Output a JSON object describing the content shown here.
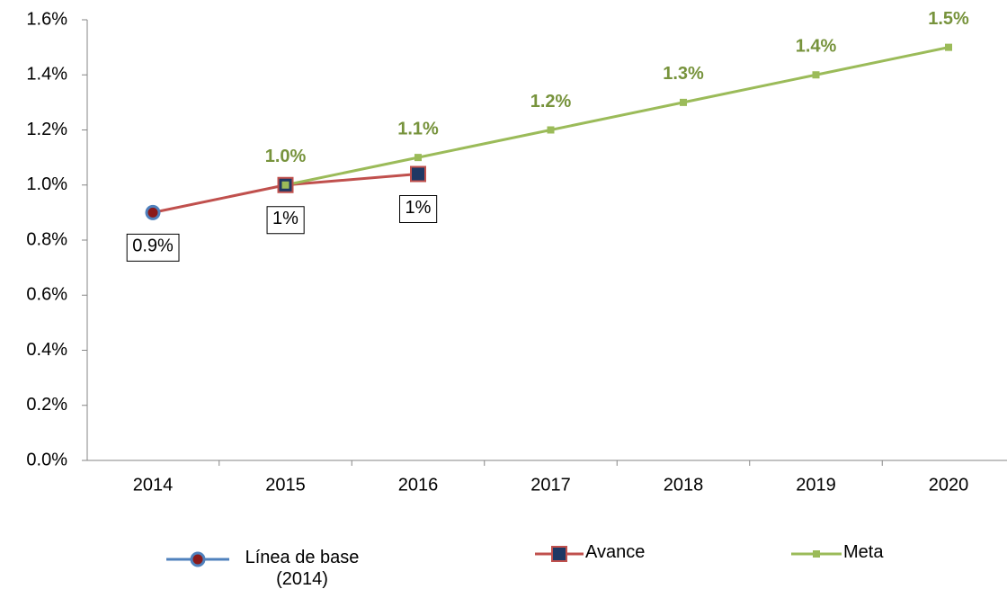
{
  "chart_data": {
    "type": "line",
    "categories": [
      "2014",
      "2015",
      "2016",
      "2017",
      "2018",
      "2019",
      "2020"
    ],
    "ylim": [
      0,
      1.6
    ],
    "yticks": [
      {
        "value": 0,
        "label": "0.0%"
      },
      {
        "value": 0.2,
        "label": "0.2%"
      },
      {
        "value": 0.4,
        "label": "0.4%"
      },
      {
        "value": 0.6,
        "label": "0.6%"
      },
      {
        "value": 0.8,
        "label": "0.8%"
      },
      {
        "value": 1.0,
        "label": "1.0%"
      },
      {
        "value": 1.2,
        "label": "1.2%"
      },
      {
        "value": 1.4,
        "label": "1.4%"
      },
      {
        "value": 1.6,
        "label": "1.6%"
      }
    ],
    "legend": "bottom",
    "series": [
      {
        "name": "Línea de base (2014)",
        "color": "#4f81bd",
        "marker": "circle",
        "values": [
          0.9,
          null,
          null,
          null,
          null,
          null,
          null
        ],
        "value_labels": [
          "0.9%",
          null,
          null,
          null,
          null,
          null,
          null
        ]
      },
      {
        "name": "Avance",
        "color": "#c0504d",
        "marker": "square",
        "values": [
          0.9,
          1.0,
          1.04,
          null,
          null,
          null,
          null
        ],
        "value_labels": [
          null,
          "1%",
          "1%",
          null,
          null,
          null,
          null
        ]
      },
      {
        "name": "Meta",
        "color": "#9bbb59",
        "marker": "small-square",
        "values": [
          null,
          1.0,
          1.1,
          1.2,
          1.3,
          1.4,
          1.5
        ],
        "value_labels": [
          null,
          "1.0%",
          "1.1%",
          "1.2%",
          "1.3%",
          "1.4%",
          "1.5%"
        ]
      }
    ]
  }
}
